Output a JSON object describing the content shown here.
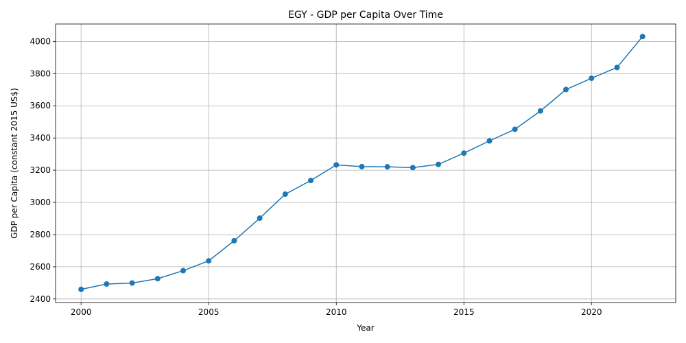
{
  "chart_data": {
    "type": "line",
    "title": "EGY - GDP per Capita Over Time",
    "xlabel": "Year",
    "ylabel": "GDP per Capita (constant 2015 US$)",
    "xlim": [
      1999,
      2023.3
    ],
    "ylim": [
      2378,
      4108
    ],
    "xticks": [
      2000,
      2005,
      2010,
      2015,
      2020
    ],
    "yticks": [
      2400,
      2600,
      2800,
      3000,
      3200,
      3400,
      3600,
      3800,
      4000
    ],
    "grid": true,
    "series": [
      {
        "color": "#1f77b4",
        "marker": "circle",
        "x": [
          2000,
          2001,
          2002,
          2003,
          2004,
          2005,
          2006,
          2007,
          2008,
          2009,
          2010,
          2011,
          2012,
          2013,
          2014,
          2015,
          2016,
          2017,
          2018,
          2019,
          2020,
          2021,
          2022
        ],
        "values": [
          2460,
          2493,
          2499,
          2526,
          2576,
          2637,
          2762,
          2902,
          3051,
          3136,
          3233,
          3222,
          3221,
          3216,
          3236,
          3306,
          3382,
          3454,
          3568,
          3701,
          3771,
          3838,
          4030
        ]
      }
    ]
  }
}
